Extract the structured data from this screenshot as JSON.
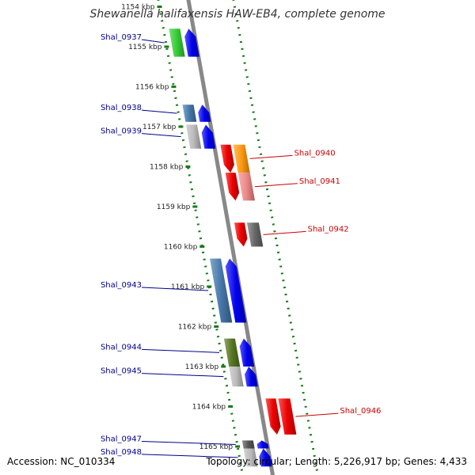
{
  "title": "Shewanella halifaxensis HAW-EB4, complete genome",
  "footer": {
    "accession": "Accession: NC_010334",
    "summary": "Topology: circular; Length: 5,226,917 bp; Genes: 4,433"
  },
  "colors": {
    "backbone": "#888888",
    "track_dots": "#1a7a1a",
    "label_forward": "#00008b",
    "label_reverse": "#cc0000",
    "kbp_text": "#222222"
  },
  "kbp_ticks": [
    {
      "kbp": 1154,
      "label": "1154 kbp"
    },
    {
      "kbp": 1155,
      "label": "1155 kbp"
    },
    {
      "kbp": 1156,
      "label": "1156 kbp"
    },
    {
      "kbp": 1157,
      "label": "1157 kbp"
    },
    {
      "kbp": 1158,
      "label": "1158 kbp"
    },
    {
      "kbp": 1159,
      "label": "1159 kbp"
    },
    {
      "kbp": 1160,
      "label": "1160 kbp"
    },
    {
      "kbp": 1161,
      "label": "1161 kbp"
    },
    {
      "kbp": 1162,
      "label": "1162 kbp"
    },
    {
      "kbp": 1163,
      "label": "1163 kbp"
    },
    {
      "kbp": 1164,
      "label": "1164 kbp"
    },
    {
      "kbp": 1165,
      "label": "1165 kbp"
    }
  ],
  "genes": [
    {
      "name": "Shal_0937",
      "strand": "forward",
      "start_kbp": 1154.55,
      "end_kbp": 1155.25,
      "cog_color": "#33cc33",
      "gene_color": "#0000ee"
    },
    {
      "name": "Shal_0938",
      "strand": "forward",
      "start_kbp": 1156.45,
      "end_kbp": 1156.88,
      "cog_color": "#4477aa",
      "gene_color": "#0000ee"
    },
    {
      "name": "Shal_0939",
      "strand": "forward",
      "start_kbp": 1156.95,
      "end_kbp": 1157.55,
      "cog_color": "#bbbbbb",
      "gene_color": "#0000ee"
    },
    {
      "name": "Shal_0940",
      "strand": "reverse",
      "start_kbp": 1157.45,
      "end_kbp": 1158.15,
      "cog_color": "#ff9911",
      "gene_color": "#ee0000"
    },
    {
      "name": "Shal_0941",
      "strand": "reverse",
      "start_kbp": 1158.15,
      "end_kbp": 1158.85,
      "cog_color": "#ee8888",
      "gene_color": "#ee0000"
    },
    {
      "name": "Shal_0942",
      "strand": "reverse",
      "start_kbp": 1159.4,
      "end_kbp": 1160.0,
      "cog_color": "#666666",
      "gene_color": "#ee0000"
    },
    {
      "name": "Shal_0943",
      "strand": "forward",
      "start_kbp": 1160.3,
      "end_kbp": 1161.9,
      "cog_color": "#4477aa",
      "gene_color": "#0000ee"
    },
    {
      "name": "Shal_0944",
      "strand": "forward",
      "start_kbp": 1162.3,
      "end_kbp": 1163.0,
      "cog_color": "#557722",
      "gene_color": "#0000ee"
    },
    {
      "name": "Shal_0945",
      "strand": "forward",
      "start_kbp": 1163.0,
      "end_kbp": 1163.5,
      "cog_color": "#bbbbbb",
      "gene_color": "#0000ee"
    },
    {
      "name": "Shal_0946",
      "strand": "reverse",
      "start_kbp": 1163.8,
      "end_kbp": 1164.7,
      "cog_color": "#ee0000",
      "gene_color": "#ee0000"
    },
    {
      "name": "Shal_0947",
      "strand": "forward",
      "start_kbp": 1164.85,
      "end_kbp": 1165.05,
      "cog_color": "#555555",
      "gene_color": "#0000ee"
    },
    {
      "name": "Shal_0948",
      "strand": "forward",
      "start_kbp": 1165.05,
      "end_kbp": 1165.5,
      "cog_color": "#bbbbbb",
      "gene_color": "#0000ee"
    }
  ]
}
